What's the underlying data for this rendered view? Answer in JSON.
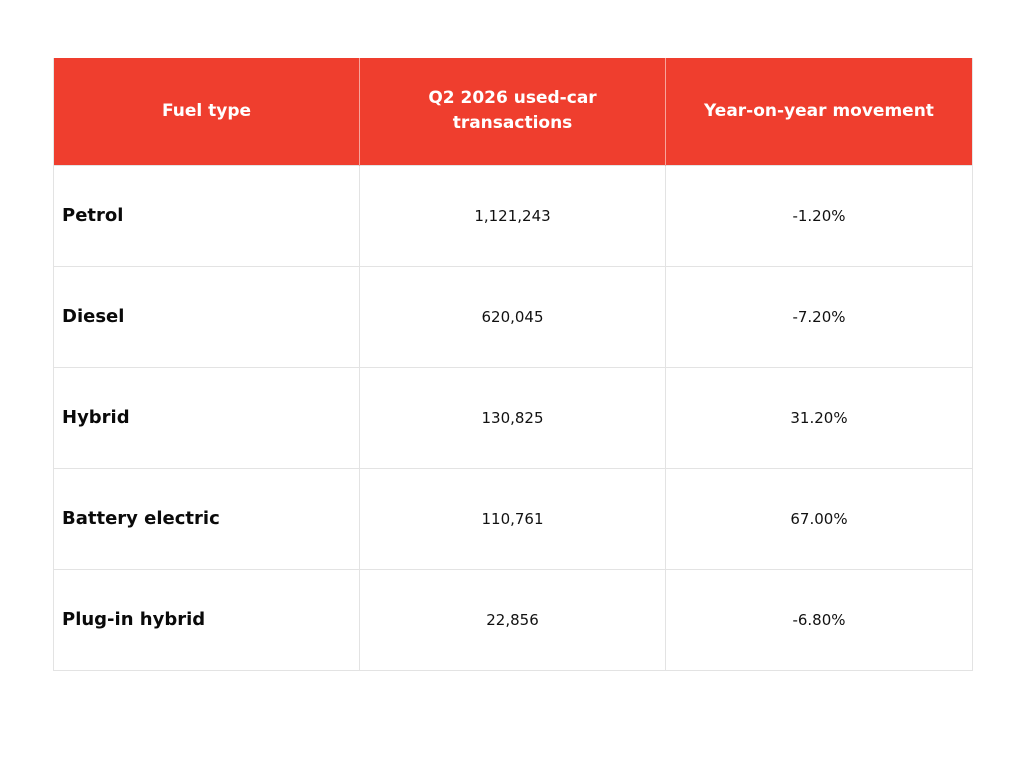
{
  "chart_data": {
    "type": "table",
    "headers": [
      "Fuel type",
      "Q2 2026 used-car transactions",
      "Year-on-year movement"
    ],
    "rows": [
      {
        "fuel": "Petrol",
        "transactions": "1,121,243",
        "yoy": "-1.20%"
      },
      {
        "fuel": "Diesel",
        "transactions": "620,045",
        "yoy": "-7.20%"
      },
      {
        "fuel": "Hybrid",
        "transactions": "130,825",
        "yoy": "31.20%"
      },
      {
        "fuel": "Battery electric",
        "transactions": "110,761",
        "yoy": "67.00%"
      },
      {
        "fuel": "Plug-in hybrid",
        "transactions": "22,856",
        "yoy": "-6.80%"
      }
    ]
  },
  "colors": {
    "header_bg": "#ef3e2e",
    "header_text": "#ffffff",
    "grid": "#e3e3e3"
  }
}
